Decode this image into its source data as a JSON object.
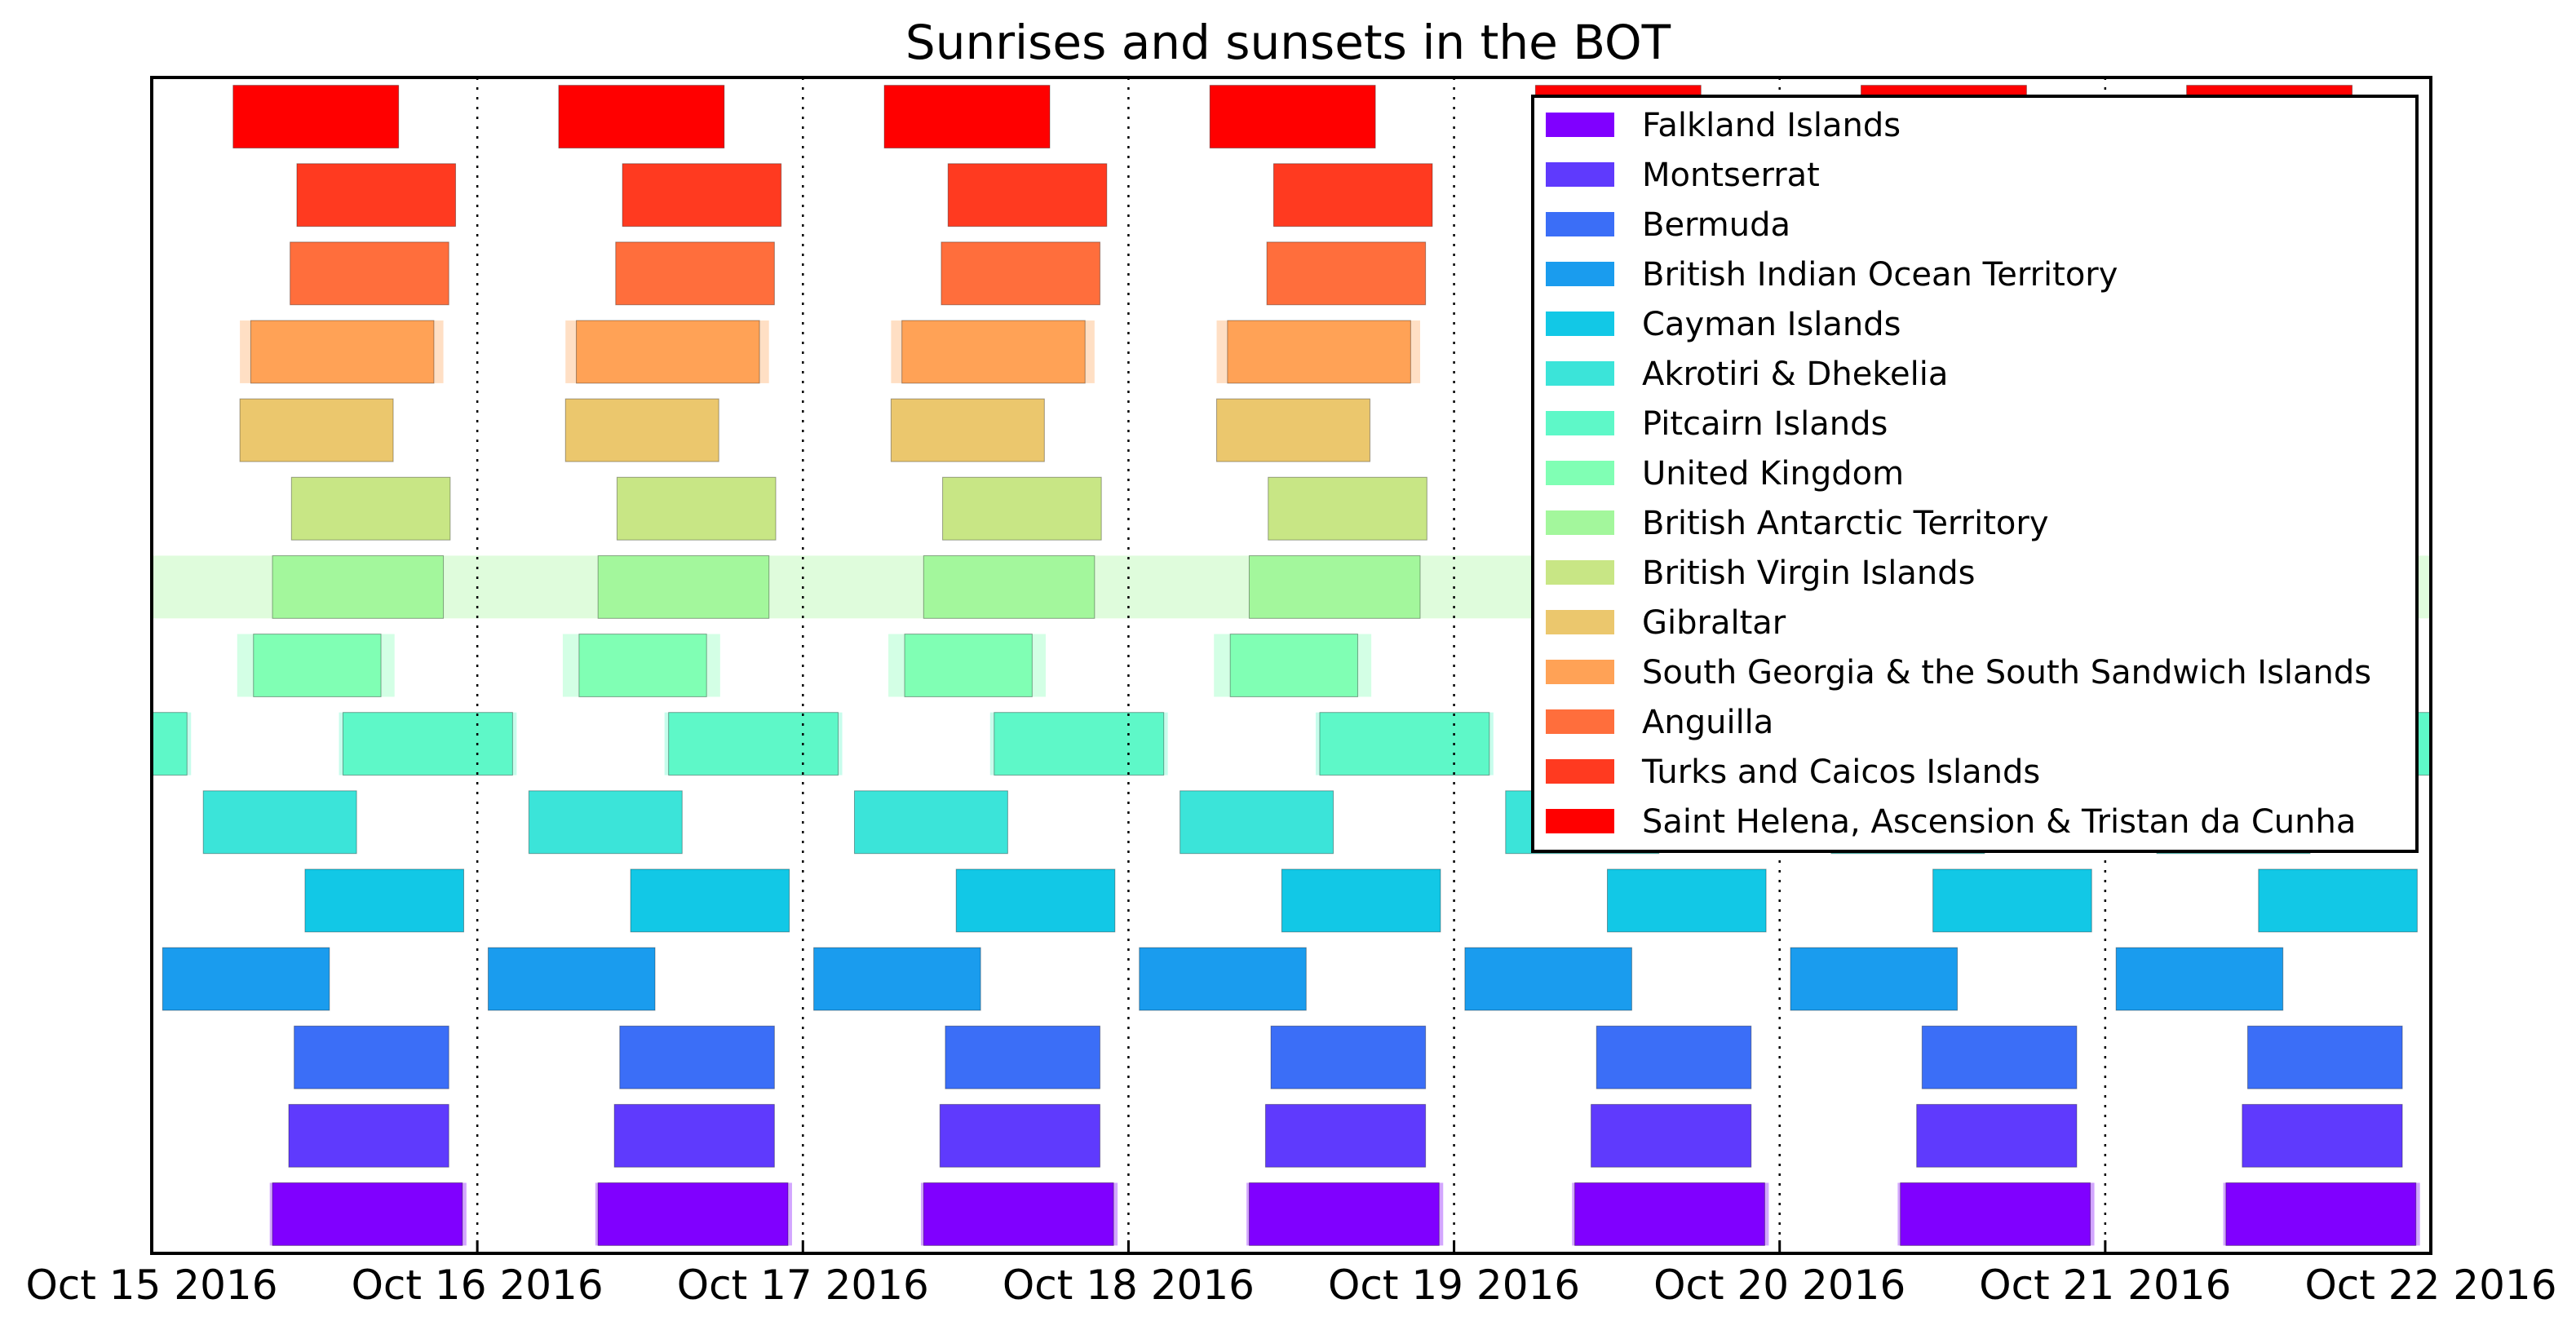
{
  "chart_data": {
    "type": "bar",
    "title": "Sunrises and sunsets in the BOT",
    "xlabel": "",
    "ylabel": "",
    "x_range": [
      "Oct 15 2016",
      "Oct 22 2016"
    ],
    "x_ticks": [
      "Oct 15 2016",
      "Oct 16 2016",
      "Oct 17 2016",
      "Oct 18 2016",
      "Oct 19 2016",
      "Oct 20 2016",
      "Oct 21 2016",
      "Oct 22 2016"
    ],
    "grid": "vertical dotted lines at day boundaries",
    "legend_position": "top-right",
    "days": [
      "Oct 15 2016",
      "Oct 16 2016",
      "Oct 17 2016",
      "Oct 18 2016",
      "Oct 19 2016",
      "Oct 20 2016",
      "Oct 21 2016"
    ],
    "units": "daylight intervals in UTC hours of each day",
    "series": [
      {
        "name": "Falkland Islands",
        "color": "#8000ff",
        "daylight": [
          8.9,
          22.9
        ],
        "twilight": [
          8.7,
          23.2
        ]
      },
      {
        "name": "Montserrat",
        "color": "#5f3afd",
        "daylight": [
          10.1,
          21.9
        ]
      },
      {
        "name": "Bermuda",
        "color": "#3b6ef7",
        "daylight": [
          10.5,
          21.9
        ]
      },
      {
        "name": "British Indian Ocean Territory",
        "color": "#1a9cee",
        "daylight": [
          0.8,
          13.1
        ]
      },
      {
        "name": "Cayman Islands",
        "color": "#12c8e6",
        "daylight": [
          11.3,
          23.0
        ]
      },
      {
        "name": "Akrotiri & Dhekelia",
        "color": "#3be4d9",
        "daylight": [
          3.8,
          15.1
        ]
      },
      {
        "name": "Pitcairn Islands",
        "color": "#5ef8c8",
        "daylight": [
          14.1,
          26.6
        ],
        "twilight": [
          13.8,
          26.9
        ]
      },
      {
        "name": "United Kingdom",
        "color": "#80ffb4",
        "daylight": [
          7.5,
          16.9
        ],
        "twilight": [
          6.3,
          17.9
        ]
      },
      {
        "name": "British Antarctic Territory",
        "color": "#a3f79c",
        "daylight": [
          8.9,
          21.5
        ],
        "twilight": [
          0.0,
          24.0
        ]
      },
      {
        "name": "British Virgin Islands",
        "color": "#c8e685",
        "daylight": [
          10.3,
          22.0
        ]
      },
      {
        "name": "Gibraltar",
        "color": "#ebc76d",
        "daylight": [
          6.5,
          17.8
        ]
      },
      {
        "name": "South Georgia & the South Sandwich Islands",
        "color": "#ffa256",
        "daylight": [
          7.3,
          20.8
        ],
        "twilight": [
          6.5,
          21.5
        ]
      },
      {
        "name": "Anguilla",
        "color": "#ff6e3c",
        "daylight": [
          10.2,
          21.9
        ]
      },
      {
        "name": "Turks and Caicos Islands",
        "color": "#ff3a20",
        "daylight": [
          10.7,
          22.4
        ]
      },
      {
        "name": "Saint Helena, Ascension & Tristan da Cunha",
        "color": "#ff0000",
        "daylight": [
          6.0,
          18.2
        ]
      }
    ]
  }
}
